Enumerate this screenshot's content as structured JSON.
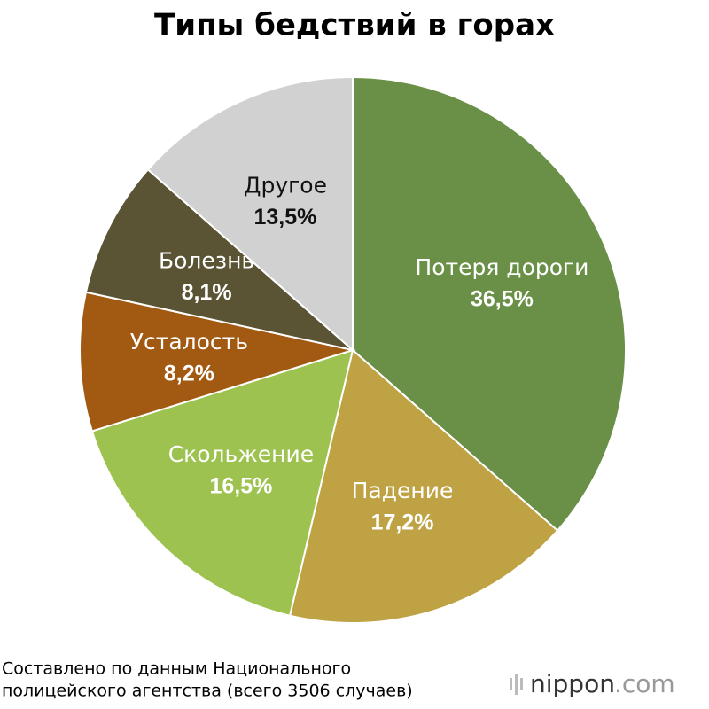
{
  "chart_data": {
    "type": "pie",
    "title": "Типы бедствий в горах",
    "categories": [
      "Потеря дороги",
      "Падение",
      "Скольжение",
      "Усталость",
      "Болезнь",
      "Другое"
    ],
    "values": [
      36.5,
      17.2,
      16.5,
      8.2,
      8.1,
      13.5
    ],
    "value_labels": [
      "36,5%",
      "17,2%",
      "16,5%",
      "8,2%",
      "8,1%",
      "13,5%"
    ],
    "colors": [
      "#6a8f47",
      "#bea243",
      "#9dc24f",
      "#a25a13",
      "#5a5334",
      "#d1d1d1"
    ],
    "source": [
      "Составлено по данным Национального",
      "полицейского агентства (всего 3506 случаев)"
    ]
  },
  "logo": {
    "name": "nippon",
    "domain": ".com"
  }
}
